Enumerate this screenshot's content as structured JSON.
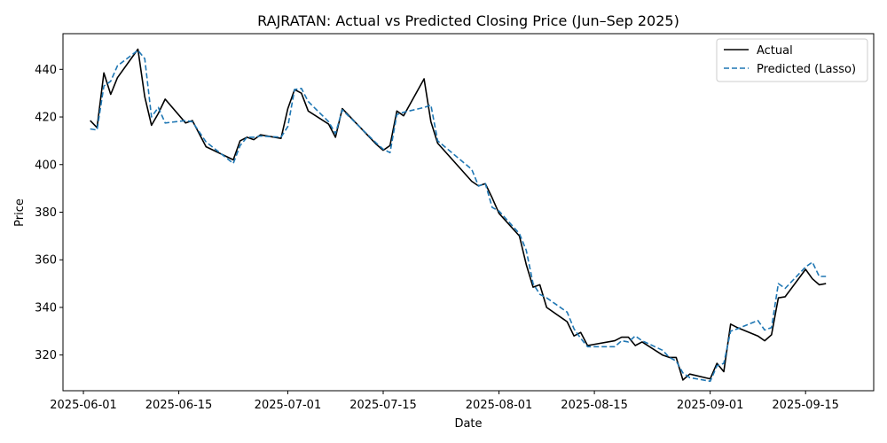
{
  "chart_data": {
    "type": "line",
    "title": "RAJRATAN: Actual vs Predicted Closing Price (Jun–Sep 2025)",
    "xlabel": "Date",
    "ylabel": "Price",
    "xlim": [
      "2025-05-29",
      "2025-09-25"
    ],
    "ylim": [
      305,
      455
    ],
    "x_ticks": [
      "2025-06-01",
      "2025-06-15",
      "2025-07-01",
      "2025-07-15",
      "2025-08-01",
      "2025-08-15",
      "2025-09-01",
      "2025-09-15"
    ],
    "y_ticks": [
      320,
      340,
      360,
      380,
      400,
      420,
      440
    ],
    "grid": false,
    "legend": "top-right",
    "series": [
      {
        "name": "Actual",
        "color": "#000000",
        "style": "solid",
        "x": [
          "2025-06-02",
          "2025-06-03",
          "2025-06-04",
          "2025-06-05",
          "2025-06-06",
          "2025-06-09",
          "2025-06-10",
          "2025-06-11",
          "2025-06-12",
          "2025-06-13",
          "2025-06-16",
          "2025-06-17",
          "2025-06-19",
          "2025-06-23",
          "2025-06-24",
          "2025-06-25",
          "2025-06-26",
          "2025-06-27",
          "2025-06-30",
          "2025-07-01",
          "2025-07-02",
          "2025-07-03",
          "2025-07-04",
          "2025-07-07",
          "2025-07-08",
          "2025-07-09",
          "2025-07-14",
          "2025-07-15",
          "2025-07-16",
          "2025-07-17",
          "2025-07-18",
          "2025-07-21",
          "2025-07-22",
          "2025-07-23",
          "2025-07-28",
          "2025-07-29",
          "2025-07-30",
          "2025-07-31",
          "2025-08-01",
          "2025-08-04",
          "2025-08-05",
          "2025-08-06",
          "2025-08-07",
          "2025-08-08",
          "2025-08-11",
          "2025-08-12",
          "2025-08-13",
          "2025-08-14",
          "2025-08-18",
          "2025-08-19",
          "2025-08-20",
          "2025-08-21",
          "2025-08-22",
          "2025-08-25",
          "2025-08-26",
          "2025-08-27",
          "2025-08-28",
          "2025-08-29",
          "2025-09-01",
          "2025-09-02",
          "2025-09-03",
          "2025-09-04",
          "2025-09-05",
          "2025-09-08",
          "2025-09-09",
          "2025-09-10",
          "2025-09-11",
          "2025-09-12",
          "2025-09-15",
          "2025-09-16",
          "2025-09-17",
          "2025-09-18"
        ],
        "y": [
          418.5,
          415.5,
          438.5,
          429.5,
          436.5,
          448.5,
          428.5,
          416.5,
          421.5,
          427.5,
          417.5,
          418.5,
          407.5,
          402,
          410,
          411.5,
          410.5,
          412.5,
          411,
          423.5,
          431.5,
          430,
          422.5,
          417,
          411.5,
          423.5,
          408.5,
          406,
          408,
          422.5,
          420.5,
          436,
          418,
          409,
          393,
          391,
          392,
          386,
          379.5,
          370,
          358,
          348.5,
          349.5,
          340,
          334,
          328,
          329.5,
          324,
          326,
          327.5,
          327.5,
          324,
          325.5,
          320,
          319,
          319,
          309.5,
          312,
          310,
          316.5,
          313,
          333,
          331.5,
          328,
          326,
          328.5,
          344,
          344.5,
          356,
          352,
          349.5,
          350
        ]
      },
      {
        "name": "Predicted (Lasso)",
        "color": "#1f77b4",
        "style": "dashed",
        "x": [
          "2025-06-02",
          "2025-06-03",
          "2025-06-04",
          "2025-06-05",
          "2025-06-06",
          "2025-06-09",
          "2025-06-10",
          "2025-06-11",
          "2025-06-12",
          "2025-06-13",
          "2025-06-16",
          "2025-06-17",
          "2025-06-19",
          "2025-06-23",
          "2025-06-24",
          "2025-06-25",
          "2025-06-26",
          "2025-06-27",
          "2025-06-30",
          "2025-07-01",
          "2025-07-02",
          "2025-07-03",
          "2025-07-04",
          "2025-07-07",
          "2025-07-08",
          "2025-07-09",
          "2025-07-14",
          "2025-07-15",
          "2025-07-16",
          "2025-07-17",
          "2025-07-18",
          "2025-07-21",
          "2025-07-22",
          "2025-07-23",
          "2025-07-28",
          "2025-07-29",
          "2025-07-30",
          "2025-07-31",
          "2025-08-01",
          "2025-08-04",
          "2025-08-05",
          "2025-08-06",
          "2025-08-07",
          "2025-08-08",
          "2025-08-11",
          "2025-08-12",
          "2025-08-13",
          "2025-08-14",
          "2025-08-18",
          "2025-08-19",
          "2025-08-20",
          "2025-08-21",
          "2025-08-22",
          "2025-08-25",
          "2025-08-26",
          "2025-08-27",
          "2025-08-28",
          "2025-08-29",
          "2025-09-01",
          "2025-09-02",
          "2025-09-03",
          "2025-09-04",
          "2025-09-05",
          "2025-09-08",
          "2025-09-09",
          "2025-09-10",
          "2025-09-11",
          "2025-09-12",
          "2025-09-15",
          "2025-09-16",
          "2025-09-17",
          "2025-09-18"
        ],
        "y": [
          415,
          414.5,
          433,
          435,
          441.5,
          448,
          444.5,
          420,
          424,
          417.5,
          418.5,
          418,
          409.5,
          400.5,
          408,
          411.5,
          411.5,
          412,
          411.5,
          416,
          431.5,
          432,
          426.5,
          418,
          413,
          423,
          409,
          406.5,
          405,
          421,
          422,
          424,
          425,
          410,
          398,
          391,
          392,
          382,
          380.5,
          371,
          364,
          350,
          345.5,
          344,
          338,
          331,
          327,
          323.5,
          323.5,
          326,
          325.5,
          328,
          326,
          322,
          319,
          317.5,
          312.5,
          310.5,
          309,
          315.5,
          316.5,
          330,
          331,
          334.5,
          330.5,
          331.5,
          350,
          348,
          357,
          359,
          353,
          353
        ]
      }
    ]
  }
}
